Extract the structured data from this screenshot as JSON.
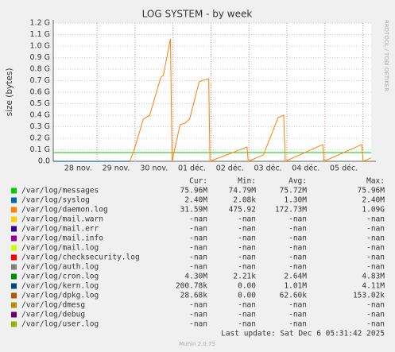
{
  "chart_data": {
    "type": "line",
    "title": "LOG SYSTEM - by week",
    "y_label": "size (bytes)",
    "side_label": "RRDTOOL / TOBI OETIKER",
    "xlim": [
      -0.155,
      8.22
    ],
    "xticks": [
      {
        "value": 0.5,
        "label": "28 nov."
      },
      {
        "value": 1.5,
        "label": "29 nov."
      },
      {
        "value": 2.5,
        "label": "30 nov."
      },
      {
        "value": 3.5,
        "label": "01 déc."
      },
      {
        "value": 4.5,
        "label": "02 déc."
      },
      {
        "value": 5.5,
        "label": "03 déc."
      },
      {
        "value": 6.5,
        "label": "04 déc."
      },
      {
        "value": 7.5,
        "label": "05 déc."
      }
    ],
    "ylim": [
      0,
      1200000000
    ],
    "yticks": [
      {
        "value": 0,
        "label": "0.0"
      },
      {
        "value": 100000000,
        "label": "0.1 G"
      },
      {
        "value": 200000000,
        "label": "0.2 G"
      },
      {
        "value": 300000000,
        "label": "0.3 G"
      },
      {
        "value": 400000000,
        "label": "0.4 G"
      },
      {
        "value": 500000000,
        "label": "0.5 G"
      },
      {
        "value": 600000000,
        "label": "0.6 G"
      },
      {
        "value": 700000000,
        "label": "0.7 G"
      },
      {
        "value": 800000000,
        "label": "0.8 G"
      },
      {
        "value": 900000000,
        "label": "0.9 G"
      },
      {
        "value": 1000000000,
        "label": "1.0 G"
      },
      {
        "value": 1100000000,
        "label": "1.1 G"
      },
      {
        "value": 1200000000,
        "label": "1.2 G"
      }
    ],
    "grid": true,
    "legend_headers": [
      "Cur:",
      "Min:",
      "Avg:",
      "Max:"
    ],
    "series": [
      {
        "name": "/var/log/messages",
        "color": "#00cc00",
        "stats": [
          "75.96M",
          "74.79M",
          "75.72M",
          "75.96M"
        ],
        "x": [
          -0.155,
          8.22
        ],
        "values": [
          75960000,
          75960000
        ]
      },
      {
        "name": "/var/log/syslog",
        "color": "#0066b3",
        "stats": [
          "2.40M",
          "2.08k",
          "1.30M",
          "2.40M"
        ]
      },
      {
        "name": "/var/log/daemon.log",
        "color": "#ff8000",
        "stats": [
          "31.59M",
          "475.92",
          "172.73M",
          "1.09G"
        ],
        "x": [
          1.861,
          1.966,
          2.218,
          2.386,
          2.681,
          2.744,
          2.933,
          2.975,
          3.185,
          3.311,
          3.437,
          3.689,
          3.794,
          3.941,
          3.973,
          4.95,
          4.981,
          5.38,
          5.769,
          5.916,
          5.958,
          6.945,
          6.977,
          7.97,
          8.01,
          8.22
        ],
        "values": [
          0,
          90000000,
          366000000,
          400000000,
          731000000,
          745000000,
          1062000000,
          0,
          317000000,
          331000000,
          366000000,
          690000000,
          703000000,
          717000000,
          0,
          124000000,
          0,
          55000000,
          379000000,
          400000000,
          0,
          145000000,
          0,
          145000000,
          0,
          30000000
        ]
      },
      {
        "name": "/var/log/mail.warn",
        "color": "#ffcc00",
        "stats": [
          "-nan",
          "-nan",
          "-nan",
          "-nan"
        ]
      },
      {
        "name": "/var/log/mail.err",
        "color": "#330099",
        "stats": [
          "-nan",
          "-nan",
          "-nan",
          "-nan"
        ]
      },
      {
        "name": "/var/log/mail.info",
        "color": "#990099",
        "stats": [
          "-nan",
          "-nan",
          "-nan",
          "-nan"
        ]
      },
      {
        "name": "/var/log/mail.log",
        "color": "#ccff00",
        "stats": [
          "-nan",
          "-nan",
          "-nan",
          "-nan"
        ]
      },
      {
        "name": "/var/log/checksecurity.log",
        "color": "#ff0000",
        "stats": [
          "-nan",
          "-nan",
          "-nan",
          "-nan"
        ]
      },
      {
        "name": "/var/log/auth.log",
        "color": "#808080",
        "stats": [
          "-nan",
          "-nan",
          "-nan",
          "-nan"
        ]
      },
      {
        "name": "/var/log/cron.log",
        "color": "#008f00",
        "stats": [
          "4.30M",
          "2.21k",
          "2.64M",
          "4.83M"
        ]
      },
      {
        "name": "/var/log/kern.log",
        "color": "#00487d",
        "stats": [
          "200.78k",
          "0.00",
          "1.01M",
          "4.11M"
        ],
        "x": [
          -0.155,
          1.861
        ],
        "values": [
          0,
          0
        ]
      },
      {
        "name": "/var/log/dpkg.log",
        "color": "#b35a00",
        "stats": [
          "28.68k",
          "0.00",
          "62.60k",
          "153.02k"
        ]
      },
      {
        "name": "/var/log/dmesg",
        "color": "#b38f00",
        "stats": [
          "-nan",
          "-nan",
          "-nan",
          "-nan"
        ]
      },
      {
        "name": "/var/log/debug",
        "color": "#6b006b",
        "stats": [
          "-nan",
          "-nan",
          "-nan",
          "-nan"
        ]
      },
      {
        "name": "/var/log/user.log",
        "color": "#8fb300",
        "stats": [
          "-nan",
          "-nan",
          "-nan",
          "-nan"
        ]
      }
    ],
    "last_update": "Last update: Sat Dec  6 05:31:42 2025",
    "footer": "Munin 2.0.73"
  }
}
